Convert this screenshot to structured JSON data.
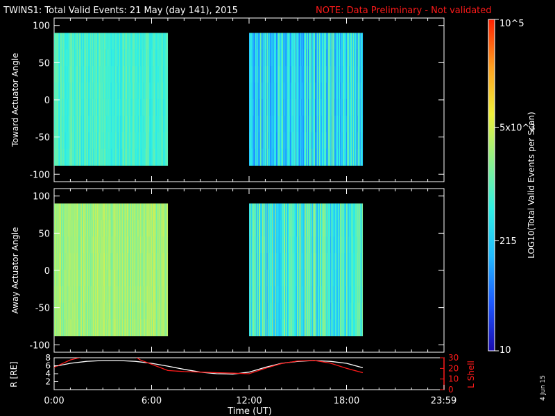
{
  "title": {
    "main": "TWINS1: Total Valid Events: 21 May (day 141), 2015",
    "note": "NOTE: Data Preliminary - Not validated",
    "note_color": "#ff1a1a"
  },
  "footer": {
    "xlabel": "Time (UT)",
    "date_stamp": "4 Jun 15"
  },
  "colorbar": {
    "label": "LOG10(Total Valid Events per Scan)",
    "ticks": [
      "10",
      "215",
      "5x10^3",
      "10^5"
    ],
    "min": 10,
    "max": 100000,
    "scale": "log",
    "colormap": [
      "#1a0bb0",
      "#1d58ff",
      "#22bbff",
      "#2ff0e4",
      "#8cf08c",
      "#f0f03a",
      "#ffa020",
      "#ff2000"
    ]
  },
  "chart_data": [
    {
      "type": "heatmap",
      "panel": "toward",
      "ylabel": "Toward Actuator Angle",
      "ylim": [
        -110,
        110
      ],
      "yticks": [
        100,
        50,
        0,
        -50,
        -100
      ],
      "xlim_hours": [
        0,
        24
      ],
      "xtick_labels": [
        "0:00",
        "6:00",
        "12:00",
        "18:00",
        "23:59"
      ],
      "data_blocks": [
        {
          "start": "0:00",
          "end": "7:00",
          "angle_range": [
            -88,
            90
          ],
          "typical_counts": 700
        },
        {
          "start": "12:00",
          "end": "19:00",
          "angle_range": [
            -88,
            90
          ],
          "typical_counts": 300
        }
      ]
    },
    {
      "type": "heatmap",
      "panel": "away",
      "ylabel": "Away Actuator Angle",
      "ylim": [
        -110,
        110
      ],
      "yticks": [
        100,
        50,
        0,
        -50,
        -100
      ],
      "xlim_hours": [
        0,
        24
      ],
      "xtick_labels": [
        "0:00",
        "6:00",
        "12:00",
        "18:00",
        "23:59"
      ],
      "data_blocks": [
        {
          "start": "0:00",
          "end": "7:00",
          "angle_range": [
            -88,
            90
          ],
          "typical_counts": 2500
        },
        {
          "start": "12:00",
          "end": "19:00",
          "angle_range": [
            -88,
            90
          ],
          "typical_counts": 600
        }
      ]
    },
    {
      "type": "line",
      "panel": "orbit",
      "ylabel_left": "R [RE]",
      "ylabel_right": "L Shell",
      "yticks_left": [
        2,
        4,
        6,
        8
      ],
      "yticks_right": [
        0,
        10,
        20,
        30
      ],
      "ylim_left": [
        0,
        8
      ],
      "ylim_right": [
        0,
        30
      ],
      "series": [
        {
          "name": "R [RE]",
          "color": "#ffffff",
          "axis": "left",
          "x": [
            0,
            1,
            2,
            3,
            4,
            5,
            6,
            7,
            8,
            9,
            10,
            11,
            12,
            13,
            14,
            15,
            16,
            17,
            18,
            19
          ],
          "y": [
            5.8,
            6.6,
            7.1,
            7.3,
            7.3,
            7.1,
            6.6,
            5.9,
            5.1,
            4.4,
            4.0,
            3.9,
            4.4,
            5.6,
            6.6,
            7.1,
            7.3,
            7.1,
            6.6,
            5.5
          ]
        },
        {
          "name": "L Shell",
          "color": "#ff1a1a",
          "axis": "right",
          "x": [
            0,
            1,
            1.8,
            5.0,
            5.3,
            7.0,
            8,
            9,
            10,
            11,
            12,
            13,
            14,
            15,
            16,
            17,
            18,
            19
          ],
          "y": [
            21,
            28,
            31,
            31,
            28,
            18,
            17,
            16.5,
            16,
            15.5,
            15,
            20,
            24.5,
            27,
            27.5,
            25,
            20,
            16
          ]
        }
      ]
    }
  ]
}
